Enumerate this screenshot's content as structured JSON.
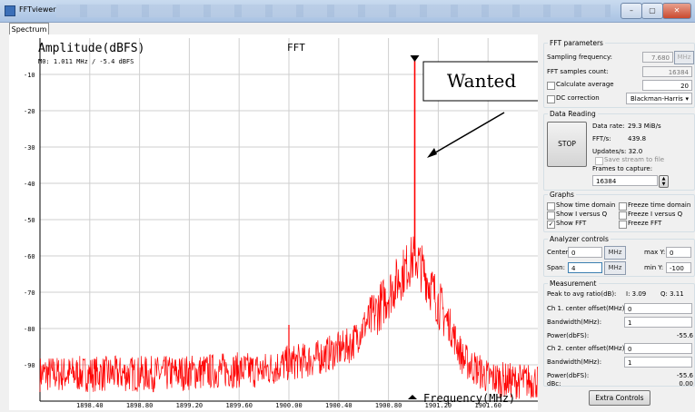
{
  "window": {
    "title": "FFTviewer",
    "controls": [
      "–",
      "▢",
      "✕"
    ]
  },
  "tabs": [
    {
      "label": "Spectrum"
    }
  ],
  "plot": {
    "ylabel": "Amplitude(dBFS)",
    "title": "FFT",
    "marker_readout": "M0:  1.011 MHz / -5.4 dBFS",
    "xlabel": "Frequency(MHz)",
    "annotation": "Wanted",
    "colors": {
      "trace": "#ff0000",
      "grid": "#cfcfcf",
      "background": "#ffffff"
    }
  },
  "chart_data": {
    "type": "line",
    "title": "FFT",
    "xlabel": "Frequency(MHz)",
    "ylabel": "Amplitude(dBFS)",
    "x_ticks": [
      "1898.40",
      "1898.80",
      "1899.20",
      "1899.60",
      "1900.00",
      "1900.40",
      "1900.80",
      "1901.20",
      "1901.60"
    ],
    "y_ticks": [
      "-10",
      "-20",
      "-30",
      "-40",
      "-50",
      "-60",
      "-70",
      "-80",
      "-90"
    ],
    "xlim": [
      1898.0,
      1902.0
    ],
    "ylim": [
      -100,
      0
    ],
    "grid": true,
    "series": [
      {
        "color": "#ff0000",
        "x": [
          1898.0,
          1898.5,
          1899.0,
          1899.5,
          1899.8,
          1900.0,
          1900.2,
          1900.5,
          1900.7,
          1900.9,
          1901.0,
          1901.011,
          1901.02,
          1901.1,
          1901.25,
          1901.4,
          1901.6,
          1901.8,
          1902.0
        ],
        "values": [
          -90,
          -90,
          -90,
          -89,
          -89,
          -87,
          -86,
          -82,
          -72,
          -62,
          -57,
          -5.4,
          -57,
          -62,
          -73,
          -86,
          -91,
          -92,
          -92
        ]
      },
      {
        "color": "#ff0000",
        "x": [
          1900.0
        ],
        "values": [
          -79
        ]
      }
    ],
    "markers": [
      {
        "name": "M0",
        "x": 1901.011,
        "y": -5.4
      }
    ]
  },
  "fft_params": {
    "title": "FFT parameters",
    "sampling_label": "Sampling frequency:",
    "sampling_value": "7.680",
    "sampling_unit": "MHz",
    "samples_label": "FFT samples count:",
    "samples_value": "16384",
    "avg_label": "Calculate average",
    "avg_value": "20",
    "dc_label": "DC correction",
    "window_value": "Blackman-Harris"
  },
  "data_reading": {
    "title": "Data Reading",
    "stop_label": "STOP",
    "rate_label": "Data rate:",
    "rate_value": "29.3 MiB/s",
    "ffts_label": "FFT/s:",
    "ffts_value": "439.8",
    "updates_label": "Updates/s: 32.0",
    "save_label": "Save stream to file",
    "frames_label": "Frames to capture:",
    "frames_value": "16384"
  },
  "graphs": {
    "title": "Graphs",
    "items": [
      {
        "label": "Show time domain",
        "checked": false
      },
      {
        "label": "Freeze time domain",
        "checked": false
      },
      {
        "label": "Show I versus Q",
        "checked": false
      },
      {
        "label": "Freeze I versus Q",
        "checked": false
      },
      {
        "label": "Show FFT",
        "checked": true
      },
      {
        "label": "Freeze FFT",
        "checked": false
      }
    ]
  },
  "analyzer": {
    "title": "Analyzer controls",
    "center_label": "Center:",
    "center_value": "0",
    "center_unit": "MHz",
    "span_label": "Span:",
    "span_value": "4",
    "span_unit": "MHz",
    "maxy_label": "max Y:",
    "maxy_value": "0",
    "miny_label": "min Y:",
    "miny_value": "-100"
  },
  "measurement": {
    "title": "Measurement",
    "peak_label": "Peak to avg ratio(dB):",
    "i_value": "I: 3.09",
    "q_value": "Q: 3.11",
    "ch1_offset_label": "Ch 1. center offset(MHz):",
    "ch1_offset_value": "0",
    "bw1_label": "Bandwidth(MHz):",
    "bw1_value": "1",
    "pow1_label": "Power(dbFS):",
    "pow1_value": "-55.6",
    "ch2_offset_label": "Ch 2. center offset(MHz):",
    "ch2_offset_value": "0",
    "bw2_label": "Bandwidth(MHz):",
    "bw2_value": "1",
    "pow2_label": "Power(dbFS):",
    "pow2_value": "-55.6",
    "dbc_label": "dBc:",
    "dbc_value": "0.00"
  },
  "extra_controls_label": "Extra Controls"
}
